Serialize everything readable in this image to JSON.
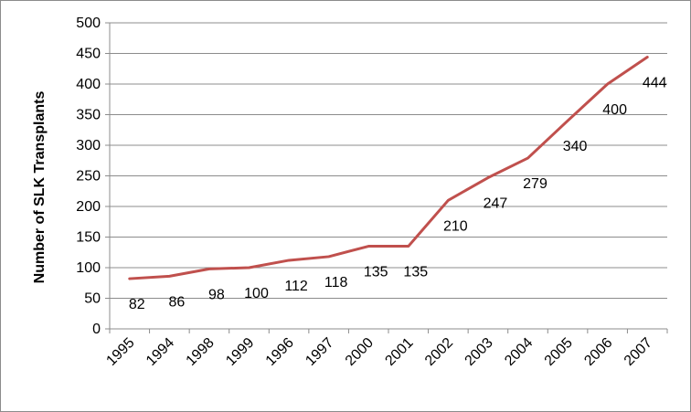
{
  "chart_data": {
    "type": "line",
    "title": "",
    "xlabel": "",
    "ylabel": "Number of SLK Transplants",
    "categories": [
      "1995",
      "1994",
      "1998",
      "1999",
      "1996",
      "1997",
      "2000",
      "2001",
      "2002",
      "2003",
      "2004",
      "2005",
      "2006",
      "2007"
    ],
    "series": [
      {
        "values": [
          82,
          86,
          98,
          100,
          112,
          118,
          135,
          135,
          210,
          247,
          279,
          340,
          400,
          444
        ],
        "color": "#c0504d"
      }
    ],
    "ylim": [
      0,
      500
    ],
    "yticks": [
      "0",
      "50",
      "100",
      "150",
      "200",
      "250",
      "300",
      "350",
      "400",
      "450",
      "500"
    ],
    "grid": "horizontal",
    "legend": "none",
    "data_labels": [
      "82",
      "86",
      "98",
      "100",
      "112",
      "118",
      "135",
      "135",
      "210",
      "247",
      "279",
      "340",
      "400",
      "444"
    ]
  }
}
